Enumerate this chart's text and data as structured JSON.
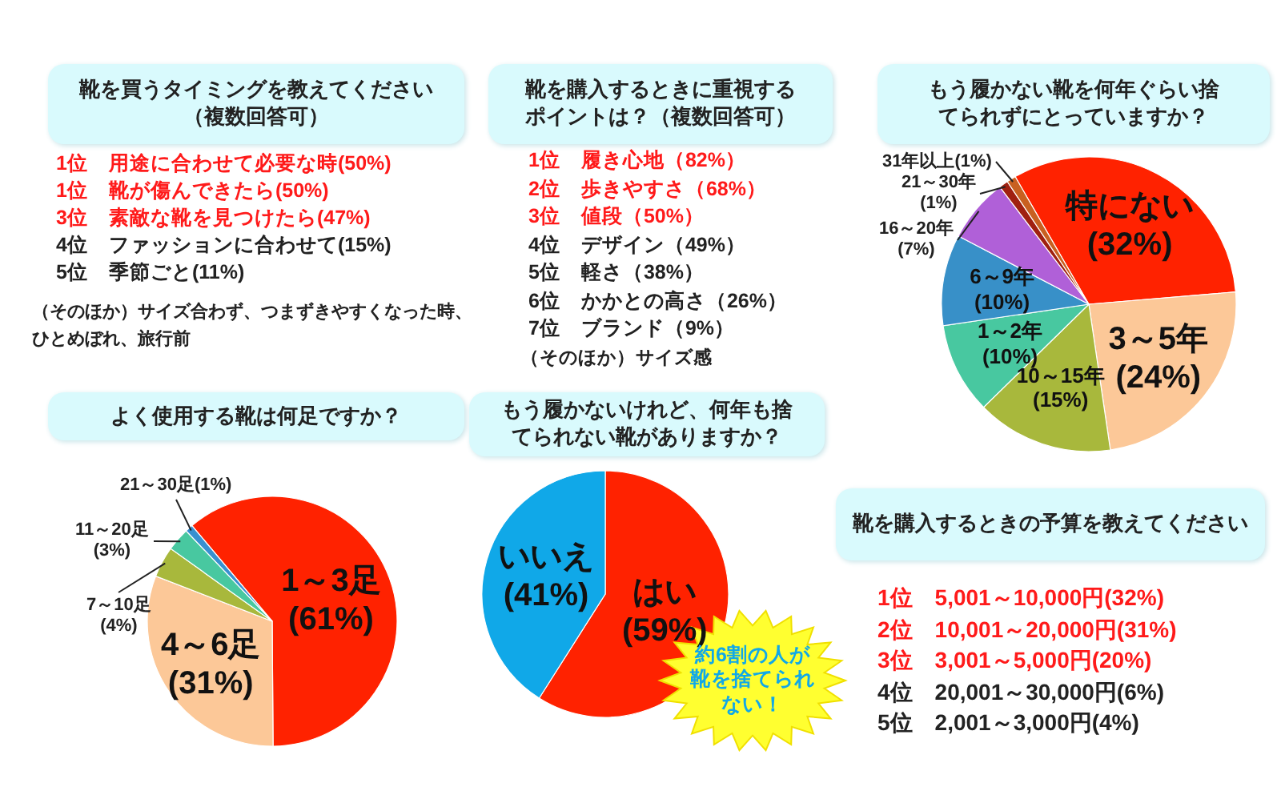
{
  "chart_data": [
    {
      "type": "other",
      "title": "靴を買うタイミングを教えてください（複数回答可）",
      "categories": [
        "1位　用途に合わせて必要な時(50%)",
        "1位　靴が傷んできたら(50%)",
        "3位　素敵な靴を見つけたら(47%)",
        "4位　ファッションに合わせて(15%)",
        "5位　季節ごと(11%)"
      ],
      "colors": [
        "#ff1a1a",
        "#ff1a1a",
        "#ff1a1a",
        "#222222",
        "#222222"
      ],
      "annotations": [
        "（そのほか）サイズ合わず、つまずきやすくなった時、ひとめぼれ、旅行前"
      ]
    },
    {
      "type": "other",
      "title": "靴を購入するときに重視するポイントは？（複数回答可）",
      "categories": [
        "1位　履き心地（82%）",
        "2位　歩きやすさ（68%）",
        "3位　値段（50%）",
        "4位　デザイン（49%）",
        "5位　軽さ（38%）",
        "6位　かかとの高さ（26%）",
        "7位　ブランド（9%）"
      ],
      "colors": [
        "#ff1a1a",
        "#ff1a1a",
        "#ff1a1a",
        "#222222",
        "#222222",
        "#222222",
        "#222222"
      ],
      "annotations": [
        "（そのほか）サイズ感"
      ]
    },
    {
      "type": "pie",
      "title": "もう履かない靴を何年ぐらい捨てられずにとっていますか？",
      "categories": [
        "特にない",
        "3～5年",
        "10～15年",
        "1～2年",
        "6～9年",
        "16～20年",
        "21～30年",
        "31年以上"
      ],
      "values": [
        32,
        24,
        15,
        10,
        10,
        7,
        1,
        1
      ],
      "value_labels": [
        "(32%)",
        "(24%)",
        "(15%)",
        "(10%)",
        "(10%)",
        "(7%)",
        "(1%)",
        "(1%)"
      ],
      "colors": [
        "#ff2200",
        "#fcc898",
        "#a8b83c",
        "#48c8a0",
        "#3890c8",
        "#b060d8",
        "#a02010",
        "#c86020"
      ]
    },
    {
      "type": "pie",
      "title": "よく使用する靴は何足ですか？",
      "categories": [
        "1～3足",
        "4～6足",
        "7～10足",
        "11～20足",
        "21～30足"
      ],
      "values": [
        61,
        31,
        4,
        3,
        1
      ],
      "value_labels": [
        "(61%)",
        "(31%)",
        "(4%)",
        "(3%)",
        "(1%)"
      ],
      "colors": [
        "#ff2200",
        "#fcc898",
        "#a8b83c",
        "#48c8a0",
        "#3890d0"
      ]
    },
    {
      "type": "pie",
      "title": "もう履かないけれど、何年も捨てられない靴がありますか？",
      "categories": [
        "はい",
        "いいえ"
      ],
      "values": [
        59,
        41
      ],
      "value_labels": [
        "(59%)",
        "(41%)"
      ],
      "colors": [
        "#ff2200",
        "#10a8e8"
      ],
      "annotations": [
        "約6割の人が靴を捨てられない！"
      ]
    },
    {
      "type": "other",
      "title": "靴を購入するときの予算を教えてください",
      "categories": [
        "1位　5,001～10,000円(32%)",
        "2位　10,001～20,000円(31%)",
        "3位　3,001～5,000円(20%)",
        "4位　20,001～30,000円(6%)",
        "5位　2,001～3,000円(4%)"
      ],
      "colors": [
        "#ff1a1a",
        "#ff1a1a",
        "#ff1a1a",
        "#222222",
        "#222222"
      ]
    }
  ]
}
